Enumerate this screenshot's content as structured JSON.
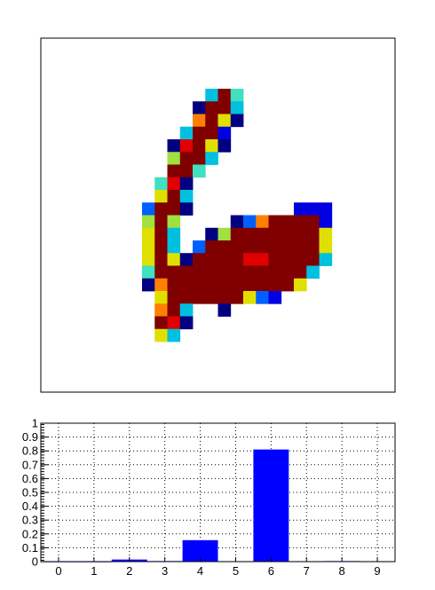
{
  "colors": {
    "background": "#ffffff",
    "frame": "#000000",
    "bar": "#0000ff",
    "grid": "#000000"
  },
  "colormap": [
    "#000080",
    "#0000e0",
    "#0060ff",
    "#00c0e0",
    "#40e0c0",
    "#a0e040",
    "#e0e000",
    "#ff8000",
    "#e00000",
    "#800000"
  ],
  "chart_data": [
    {
      "type": "heatmap",
      "title": "",
      "xlabel": "",
      "ylabel": "",
      "grid": false,
      "cols": 28,
      "rows": 28,
      "zlim": [
        0,
        1
      ],
      "values": [
        [
          0,
          0,
          0,
          0,
          0,
          0,
          0,
          0,
          0,
          0,
          0,
          0,
          0,
          0,
          0,
          0,
          0,
          0,
          0,
          0,
          0,
          0,
          0,
          0,
          0,
          0,
          0,
          0
        ],
        [
          0,
          0,
          0,
          0,
          0,
          0,
          0,
          0,
          0,
          0,
          0,
          0,
          0,
          0,
          0,
          0,
          0,
          0,
          0,
          0,
          0,
          0,
          0,
          0,
          0,
          0,
          0,
          0
        ],
        [
          0,
          0,
          0,
          0,
          0,
          0,
          0,
          0,
          0,
          0,
          0,
          0,
          0,
          0,
          0,
          0,
          0,
          0,
          0,
          0,
          0,
          0,
          0,
          0,
          0,
          0,
          0,
          0
        ],
        [
          0,
          0,
          0,
          0,
          0,
          0,
          0,
          0,
          0,
          0,
          0,
          0,
          0,
          0,
          0,
          0,
          0,
          0,
          0,
          0,
          0,
          0,
          0,
          0,
          0,
          0,
          0,
          0
        ],
        [
          0,
          0,
          0,
          0,
          0,
          0,
          0,
          0,
          0,
          0,
          0,
          0,
          0,
          0.35,
          0.96,
          0.4,
          0,
          0,
          0,
          0,
          0,
          0,
          0,
          0,
          0,
          0,
          0,
          0
        ],
        [
          0,
          0,
          0,
          0,
          0,
          0,
          0,
          0,
          0,
          0,
          0,
          0,
          0.05,
          0.91,
          0.96,
          0.31,
          0,
          0,
          0,
          0,
          0,
          0,
          0,
          0,
          0,
          0,
          0,
          0
        ],
        [
          0,
          0,
          0,
          0,
          0,
          0,
          0,
          0,
          0,
          0,
          0,
          0,
          0.75,
          0.96,
          0.62,
          0.02,
          0,
          0,
          0,
          0,
          0,
          0,
          0,
          0,
          0,
          0,
          0,
          0
        ],
        [
          0,
          0,
          0,
          0,
          0,
          0,
          0,
          0,
          0,
          0,
          0,
          0.32,
          0.96,
          0.96,
          0.18,
          0,
          0,
          0,
          0,
          0,
          0,
          0,
          0,
          0,
          0,
          0,
          0,
          0
        ],
        [
          0,
          0,
          0,
          0,
          0,
          0,
          0,
          0,
          0,
          0,
          0.04,
          0.8,
          0.96,
          0.62,
          0.02,
          0,
          0,
          0,
          0,
          0,
          0,
          0,
          0,
          0,
          0,
          0,
          0,
          0
        ],
        [
          0,
          0,
          0,
          0,
          0,
          0,
          0,
          0,
          0,
          0,
          0.56,
          0.96,
          0.9,
          0.3,
          0,
          0,
          0,
          0,
          0,
          0,
          0,
          0,
          0,
          0,
          0,
          0,
          0,
          0
        ],
        [
          0,
          0,
          0,
          0,
          0,
          0,
          0,
          0,
          0,
          0,
          0.9,
          0.96,
          0.45,
          0,
          0,
          0,
          0,
          0,
          0,
          0,
          0,
          0,
          0,
          0,
          0,
          0,
          0,
          0
        ],
        [
          0,
          0,
          0,
          0,
          0,
          0,
          0,
          0,
          0,
          0.4,
          0.86,
          0.04,
          0,
          0,
          0,
          0,
          0,
          0,
          0,
          0,
          0,
          0,
          0,
          0,
          0,
          0,
          0,
          0
        ],
        [
          0,
          0,
          0,
          0,
          0,
          0,
          0,
          0,
          0,
          0.62,
          0.96,
          0.32,
          0,
          0,
          0,
          0,
          0,
          0,
          0,
          0,
          0,
          0,
          0,
          0,
          0,
          0,
          0,
          0
        ],
        [
          0,
          0,
          0,
          0,
          0,
          0,
          0,
          0,
          0.2,
          0.96,
          0.9,
          0.05,
          0,
          0,
          0,
          0,
          0,
          0,
          0,
          0,
          0.1,
          0.1,
          0.1,
          0,
          0,
          0,
          0,
          0
        ],
        [
          0,
          0,
          0,
          0,
          0,
          0,
          0,
          0,
          0.55,
          0.96,
          0.5,
          0,
          0,
          0,
          0,
          0.05,
          0.28,
          0.75,
          0.96,
          0.96,
          0.96,
          0.96,
          0.1,
          0,
          0,
          0,
          0,
          0
        ],
        [
          0,
          0,
          0,
          0,
          0,
          0,
          0,
          0,
          0.6,
          0.96,
          0.3,
          0,
          0,
          0.05,
          0.5,
          0.9,
          0.96,
          0.96,
          0.96,
          0.96,
          0.96,
          0.96,
          0.6,
          0,
          0,
          0,
          0,
          0
        ],
        [
          0,
          0,
          0,
          0,
          0,
          0,
          0,
          0,
          0.6,
          0.96,
          0.3,
          0,
          0.25,
          0.9,
          0.96,
          0.96,
          0.96,
          0.96,
          0.96,
          0.96,
          0.96,
          0.96,
          0.6,
          0,
          0,
          0,
          0,
          0
        ],
        [
          0,
          0,
          0,
          0,
          0,
          0,
          0,
          0,
          0.6,
          0.96,
          0.62,
          0.02,
          0.96,
          0.96,
          0.96,
          0.96,
          0.8,
          0.8,
          0.96,
          0.96,
          0.96,
          0.96,
          0.3,
          0,
          0,
          0,
          0,
          0
        ],
        [
          0,
          0,
          0,
          0,
          0,
          0,
          0,
          0,
          0.4,
          0.96,
          0.96,
          0.96,
          0.96,
          0.96,
          0.96,
          0.96,
          0.96,
          0.96,
          0.96,
          0.96,
          0.96,
          0.35,
          0,
          0,
          0,
          0,
          0,
          0
        ],
        [
          0,
          0,
          0,
          0,
          0,
          0,
          0,
          0,
          0.04,
          0.75,
          0.96,
          0.96,
          0.96,
          0.96,
          0.96,
          0.96,
          0.96,
          0.96,
          0.96,
          0.96,
          0.62,
          0,
          0,
          0,
          0,
          0,
          0,
          0
        ],
        [
          0,
          0,
          0,
          0,
          0,
          0,
          0,
          0,
          0,
          0.62,
          0.96,
          0.96,
          0.96,
          0.96,
          0.96,
          0.96,
          0.62,
          0.2,
          0.1,
          0,
          0,
          0,
          0,
          0,
          0,
          0,
          0,
          0
        ],
        [
          0,
          0,
          0,
          0,
          0,
          0,
          0,
          0,
          0,
          0.75,
          0.96,
          0.3,
          0,
          0,
          0.05,
          0,
          0,
          0,
          0,
          0,
          0,
          0,
          0,
          0,
          0,
          0,
          0,
          0
        ],
        [
          0,
          0,
          0,
          0,
          0,
          0,
          0,
          0,
          0,
          0.96,
          0.8,
          0.02,
          0,
          0,
          0,
          0,
          0,
          0,
          0,
          0,
          0,
          0,
          0,
          0,
          0,
          0,
          0,
          0
        ],
        [
          0,
          0,
          0,
          0,
          0,
          0,
          0,
          0,
          0,
          0.62,
          0.35,
          0,
          0,
          0,
          0,
          0,
          0,
          0,
          0,
          0,
          0,
          0,
          0,
          0,
          0,
          0,
          0,
          0
        ],
        [
          0,
          0,
          0,
          0,
          0,
          0,
          0,
          0,
          0,
          0,
          0,
          0,
          0,
          0,
          0,
          0,
          0,
          0,
          0,
          0,
          0,
          0,
          0,
          0,
          0,
          0,
          0,
          0
        ],
        [
          0,
          0,
          0,
          0,
          0,
          0,
          0,
          0,
          0,
          0,
          0,
          0,
          0,
          0,
          0,
          0,
          0,
          0,
          0,
          0,
          0,
          0,
          0,
          0,
          0,
          0,
          0,
          0
        ],
        [
          0,
          0,
          0,
          0,
          0,
          0,
          0,
          0,
          0,
          0,
          0,
          0,
          0,
          0,
          0,
          0,
          0,
          0,
          0,
          0,
          0,
          0,
          0,
          0,
          0,
          0,
          0,
          0
        ],
        [
          0,
          0,
          0,
          0,
          0,
          0,
          0,
          0,
          0,
          0,
          0,
          0,
          0,
          0,
          0,
          0,
          0,
          0,
          0,
          0,
          0,
          0,
          0,
          0,
          0,
          0,
          0,
          0
        ]
      ]
    },
    {
      "type": "bar",
      "title": "",
      "xlabel": "",
      "ylabel": "",
      "grid": true,
      "categories": [
        "0",
        "1",
        "2",
        "3",
        "4",
        "5",
        "6",
        "7",
        "8",
        "9"
      ],
      "values": [
        0.002,
        0.002,
        0.015,
        0.004,
        0.155,
        0.003,
        0.81,
        0.003,
        0.004,
        0.003
      ],
      "ylim": [
        0,
        1
      ],
      "xlim": [
        -0.5,
        9.5
      ],
      "y_ticks": [
        "0",
        "0.1",
        "0.2",
        "0.3",
        "0.4",
        "0.5",
        "0.6",
        "0.7",
        "0.8",
        "0.9",
        "1"
      ]
    }
  ]
}
